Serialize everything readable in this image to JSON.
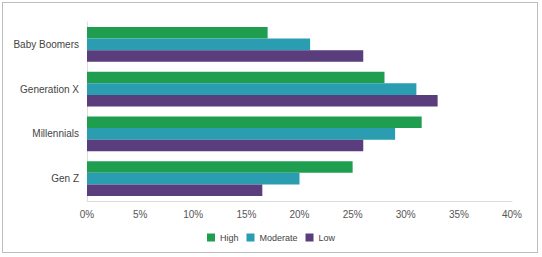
{
  "chart_data": {
    "type": "bar",
    "orientation": "horizontal",
    "categories": [
      "Baby Boomers",
      "Generation X",
      "Millennials",
      "Gen Z"
    ],
    "series": [
      {
        "name": "High",
        "color": "#1f9e4f",
        "values": [
          17,
          28,
          31.5,
          25
        ]
      },
      {
        "name": "Moderate",
        "color": "#2a9db0",
        "values": [
          21,
          31,
          29,
          20
        ]
      },
      {
        "name": "Low",
        "color": "#5a3d7d",
        "values": [
          26,
          33,
          26,
          16.5
        ]
      }
    ],
    "xlim": [
      0,
      40
    ],
    "xticks": [
      {
        "value": 0,
        "label": "0%"
      },
      {
        "value": 5,
        "label": "5%"
      },
      {
        "value": 10,
        "label": "10%"
      },
      {
        "value": 15,
        "label": "15%"
      },
      {
        "value": 20,
        "label": "20%"
      },
      {
        "value": 25,
        "label": "25%"
      },
      {
        "value": 30,
        "label": "30%"
      },
      {
        "value": 35,
        "label": "35%"
      },
      {
        "value": 40,
        "label": "40%"
      }
    ],
    "grid": false,
    "legend": "bottom"
  }
}
